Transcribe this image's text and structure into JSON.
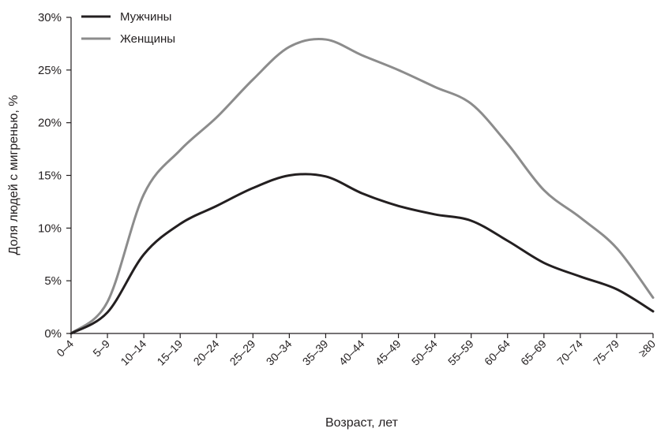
{
  "chart_data": {
    "type": "line",
    "title": "",
    "xlabel": "Возраст, лет",
    "ylabel": "Доля людей с мигренью, %",
    "categories": [
      "0–4",
      "5–9",
      "10–14",
      "15–19",
      "20–24",
      "25–29",
      "30–34",
      "35–39",
      "40–44",
      "45–49",
      "50–54",
      "55–59",
      "60–64",
      "65–69",
      "70–74",
      "75–79",
      "≥80"
    ],
    "y_ticks": [
      "0%",
      "5%",
      "10%",
      "15%",
      "20%",
      "25%",
      "30%"
    ],
    "ylim": [
      0,
      30
    ],
    "grid": false,
    "legend_position": "top-left",
    "series": [
      {
        "name": "Мужчины",
        "color": "#231f20",
        "values": [
          0.0,
          2.0,
          7.5,
          10.4,
          12.1,
          13.8,
          15.0,
          14.9,
          13.3,
          12.1,
          11.3,
          10.7,
          8.8,
          6.7,
          5.4,
          4.2,
          2.1
        ]
      },
      {
        "name": "Женщины",
        "color": "#8c8c8c",
        "values": [
          0.0,
          3.0,
          13.2,
          17.4,
          20.5,
          24.1,
          27.2,
          27.9,
          26.4,
          25.0,
          23.4,
          21.8,
          18.0,
          13.6,
          11.0,
          8.1,
          3.4
        ]
      }
    ]
  }
}
